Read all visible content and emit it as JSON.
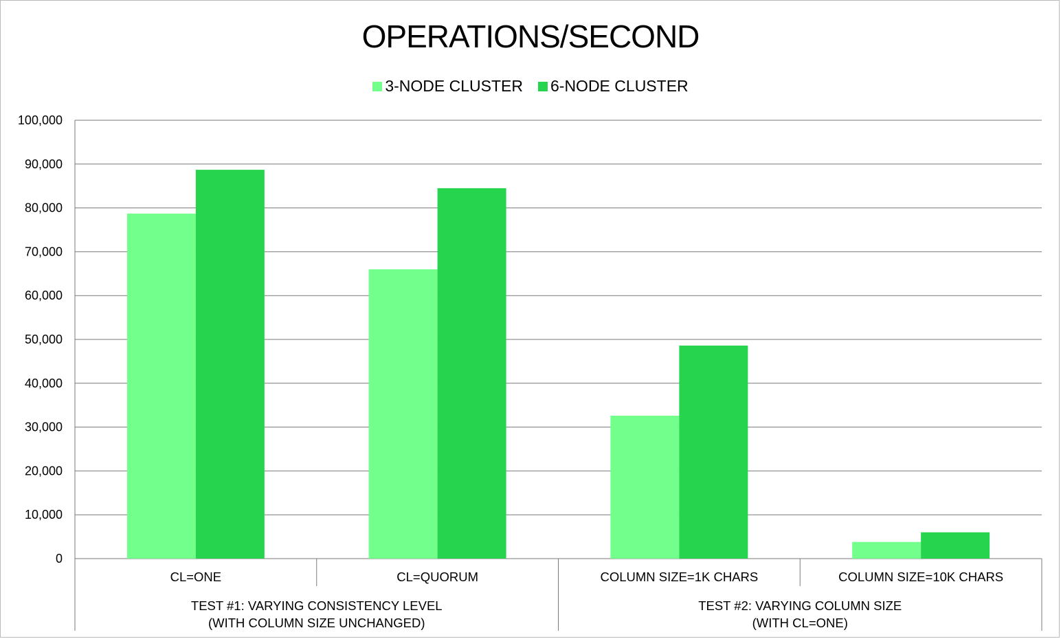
{
  "chart_data": {
    "type": "bar",
    "title": "OPERATIONS/SECOND",
    "categories": [
      "CL=ONE",
      "CL=QUORUM",
      "COLUMN SIZE=1K CHARS",
      "COLUMN SIZE=10K CHARS"
    ],
    "groups": [
      {
        "label_line1": "TEST #1: VARYING CONSISTENCY LEVEL",
        "label_line2": "(WITH COLUMN SIZE UNCHANGED)",
        "categories": [
          0,
          1
        ]
      },
      {
        "label_line1": "TEST #2: VARYING COLUMN SIZE",
        "label_line2": "(WITH CL=ONE)",
        "categories": [
          2,
          3
        ]
      }
    ],
    "series": [
      {
        "name": "3-NODE CLUSTER",
        "color": "#73ff8c",
        "values": [
          78700,
          66000,
          32600,
          3800
        ]
      },
      {
        "name": "6-NODE CLUSTER",
        "color": "#26d44d",
        "values": [
          88700,
          84500,
          48600,
          6000
        ]
      }
    ],
    "ylim": [
      0,
      100000
    ],
    "yticks": [
      0,
      10000,
      20000,
      30000,
      40000,
      50000,
      60000,
      70000,
      80000,
      90000,
      100000
    ],
    "ytick_labels": [
      "0",
      "10,000",
      "20,000",
      "30,000",
      "40,000",
      "50,000",
      "60,000",
      "70,000",
      "80,000",
      "90,000",
      "100,000"
    ],
    "grid": true,
    "legend_position": "top-center"
  }
}
